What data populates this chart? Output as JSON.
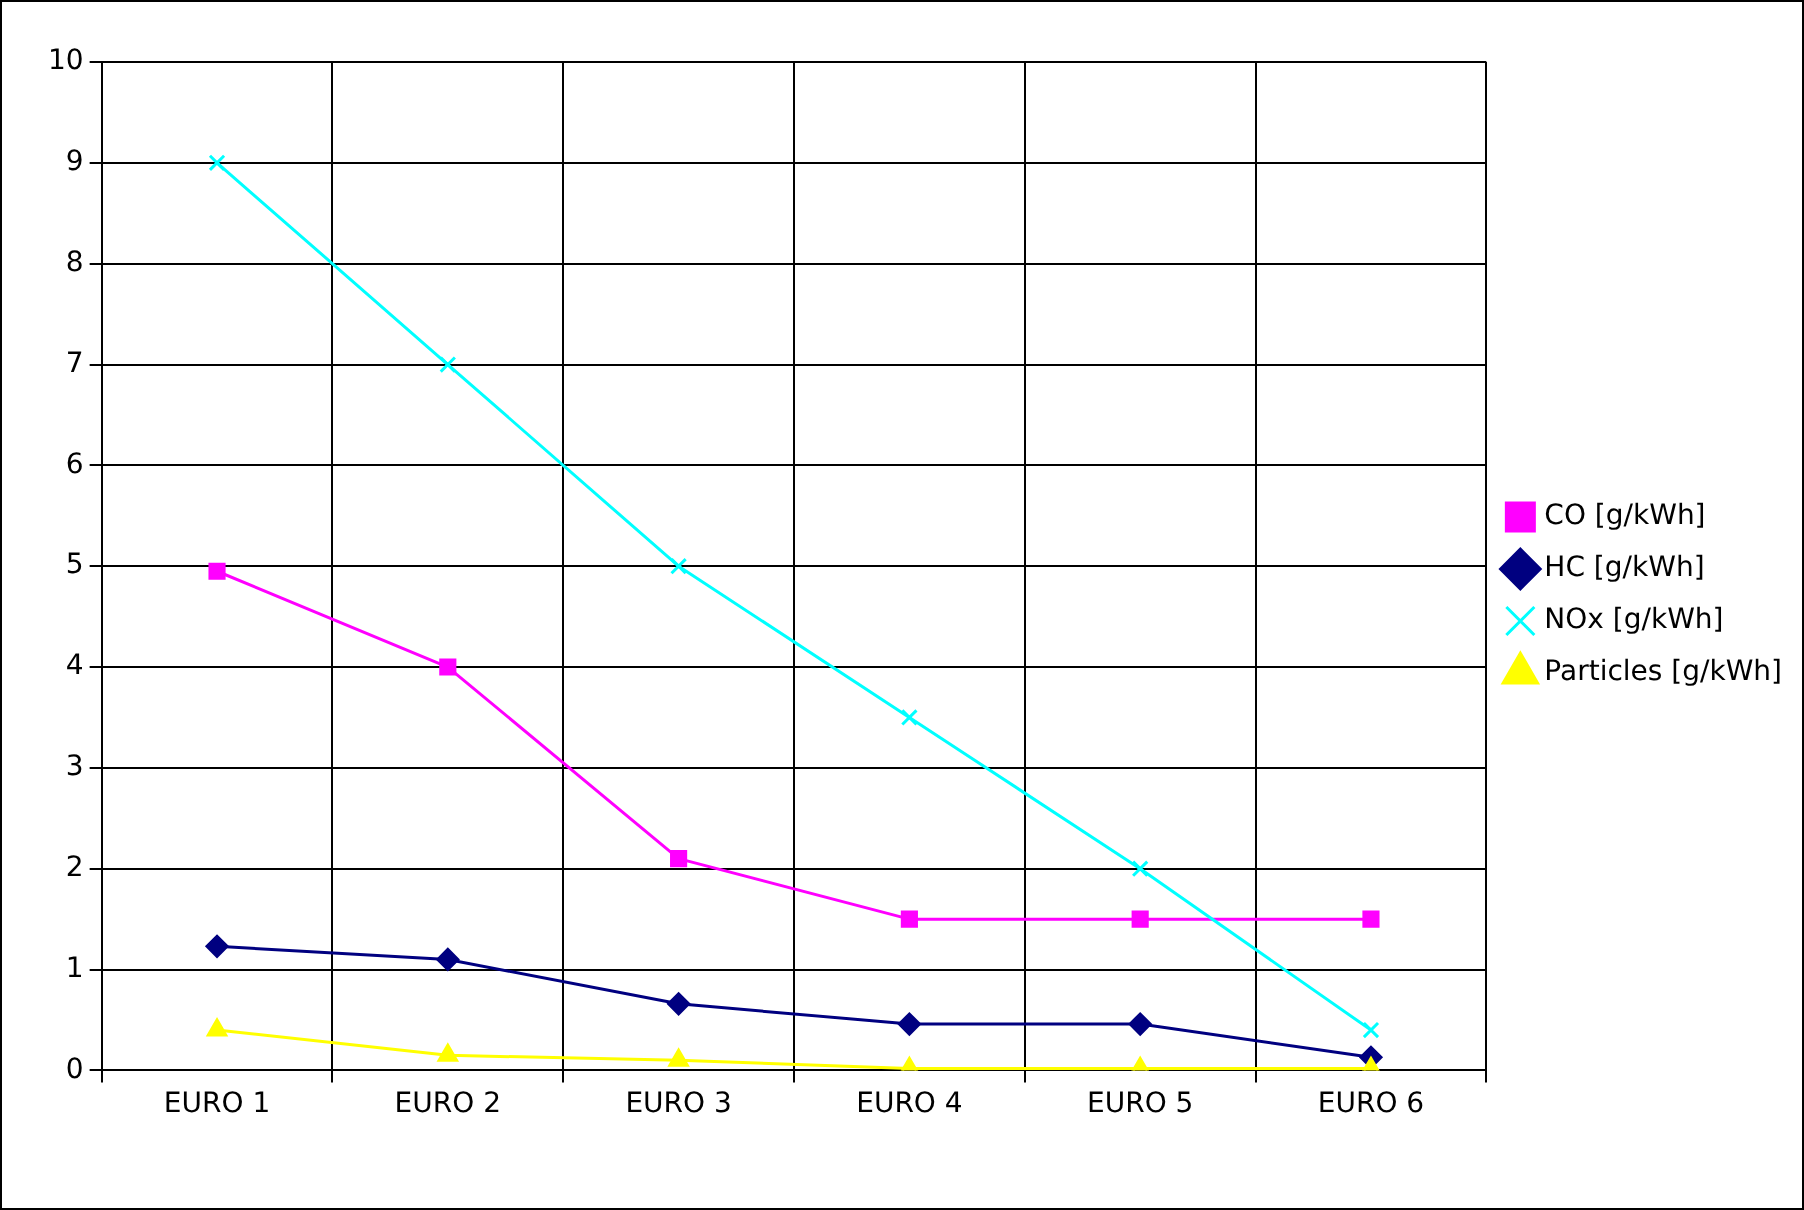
{
  "chart_data": {
    "type": "line",
    "categories": [
      "EURO 1",
      "EURO 2",
      "EURO 3",
      "EURO 4",
      "EURO 5",
      "EURO 6"
    ],
    "series": [
      {
        "name": "CO [g/kWh]",
        "color": "#ff00ff",
        "marker": "square",
        "values": [
          4.95,
          4.0,
          2.1,
          1.5,
          1.5,
          1.5
        ]
      },
      {
        "name": "HC [g/kWh]",
        "color": "#000080",
        "marker": "diamond",
        "values": [
          1.23,
          1.1,
          0.66,
          0.46,
          0.46,
          0.13
        ]
      },
      {
        "name": "NOx [g/kWh]",
        "color": "#00ffff",
        "marker": "cross",
        "values": [
          9.0,
          7.0,
          5.0,
          3.5,
          2.0,
          0.4
        ]
      },
      {
        "name": "Particles [g/kWh]",
        "color": "#ffff00",
        "marker": "triangle",
        "values": [
          0.4,
          0.15,
          0.1,
          0.02,
          0.02,
          0.02
        ]
      }
    ],
    "ylim": [
      0,
      10
    ],
    "yticks": [
      0,
      1,
      2,
      3,
      4,
      5,
      6,
      7,
      8,
      9,
      10
    ],
    "grid": true,
    "legend": "right"
  }
}
